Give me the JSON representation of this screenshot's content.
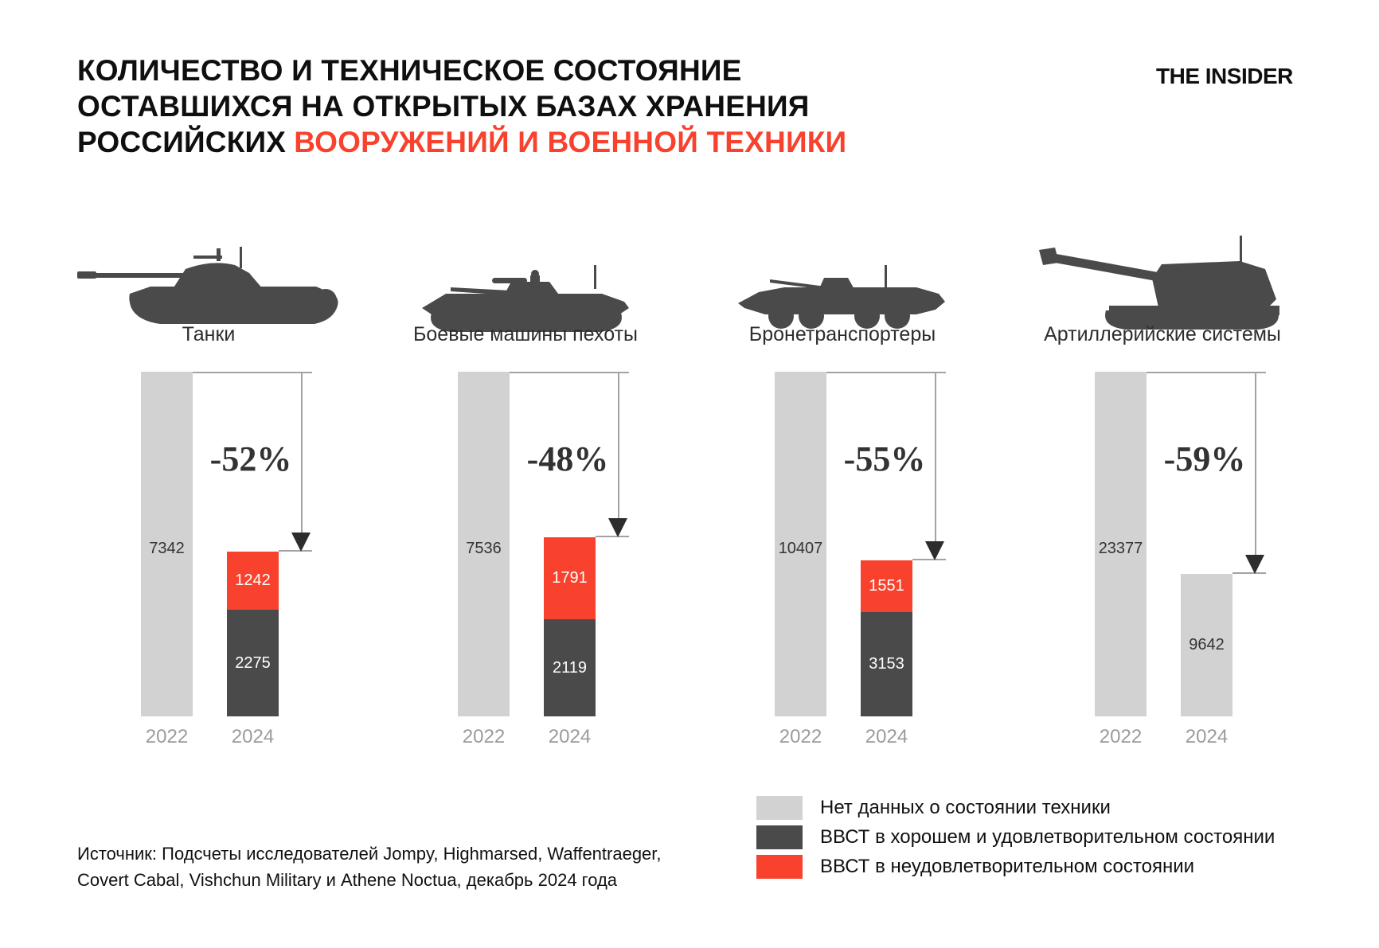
{
  "header": {
    "title_line1": "КОЛИЧЕСТВО И ТЕХНИЧЕСКОЕ СОСТОЯНИЕ",
    "title_line2": "ОСТАВШИХСЯ НА ОТКРЫТЫХ БАЗАХ ХРАНЕНИЯ",
    "title_line3_black": "РОССИЙСКИХ",
    "title_line3_red": "ВООРУЖЕНИЙ И ВОЕННОЙ ТЕХНИКИ",
    "brand": "THE INSIDER"
  },
  "colors": {
    "accent_red": "#f8422e",
    "dark_gray": "#4a4a4a",
    "light_gray": "#d2d2d2",
    "arrow_gray": "#a3a3a3",
    "year_gray": "#9b9b9b",
    "text_dark": "#333333"
  },
  "chart_data": {
    "type": "bar",
    "subtype": "paired-stacked-comparison-normalized",
    "title": "Количество и техническое состояние оставшихся на открытых базах хранения российских вооружений и военной техники",
    "years": [
      "2022",
      "2024"
    ],
    "legend": [
      {
        "key": "nodata",
        "label": "Нет данных о состоянии техники",
        "color": "#d2d2d2"
      },
      {
        "key": "good",
        "label": "ВВСТ в хорошем и удовлетворительном состоянии",
        "color": "#4a4a4a"
      },
      {
        "key": "bad",
        "label": "ВВСТ в неудовлетворительном состоянии",
        "color": "#f8422e"
      }
    ],
    "groups": [
      {
        "category": "Танки",
        "icon": "tank-icon",
        "value_2022": 7342,
        "total_2024": 3517,
        "change_pct": -52,
        "change_label": "-52%",
        "segments_2024": [
          {
            "key": "bad",
            "value": 1242
          },
          {
            "key": "good",
            "value": 2275
          }
        ]
      },
      {
        "category": "Боевые машины пехоты",
        "icon": "ifv-icon",
        "value_2022": 7536,
        "total_2024": 3910,
        "change_pct": -48,
        "change_label": "-48%",
        "segments_2024": [
          {
            "key": "bad",
            "value": 1791
          },
          {
            "key": "good",
            "value": 2119
          }
        ]
      },
      {
        "category": "Бронетранспортеры",
        "icon": "apc-icon",
        "value_2022": 10407,
        "total_2024": 4704,
        "change_pct": -55,
        "change_label": "-55%",
        "segments_2024": [
          {
            "key": "bad",
            "value": 1551
          },
          {
            "key": "good",
            "value": 3153
          }
        ]
      },
      {
        "category": "Артиллерийские системы",
        "icon": "artillery-icon",
        "value_2022": 23377,
        "total_2024": 9642,
        "change_pct": -59,
        "change_label": "-59%",
        "segments_2024": [
          {
            "key": "nodata",
            "value": 9642
          }
        ]
      }
    ]
  },
  "footer": {
    "source_line1": "Источник: Подсчеты исследователей Jompy, Highmarsed, Waffentraeger,",
    "source_line2": "Covert Cabal, Vishchun Military и Athene Noctua, декабрь 2024 года"
  }
}
